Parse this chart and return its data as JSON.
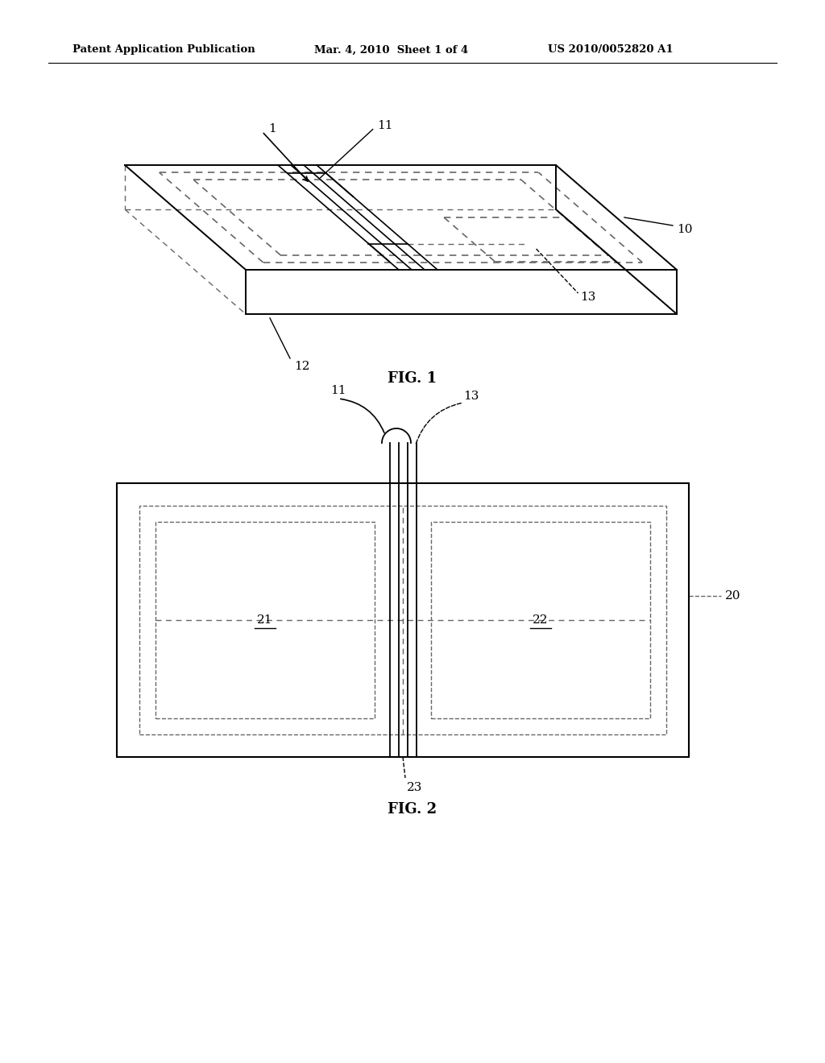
{
  "background_color": "#ffffff",
  "header_left": "Patent Application Publication",
  "header_mid": "Mar. 4, 2010  Sheet 1 of 4",
  "header_right": "US 2010/0052820 A1",
  "fig1_label": "FIG. 1",
  "fig2_label": "FIG. 2",
  "line_color": "#000000",
  "dashed_color": "#666666"
}
